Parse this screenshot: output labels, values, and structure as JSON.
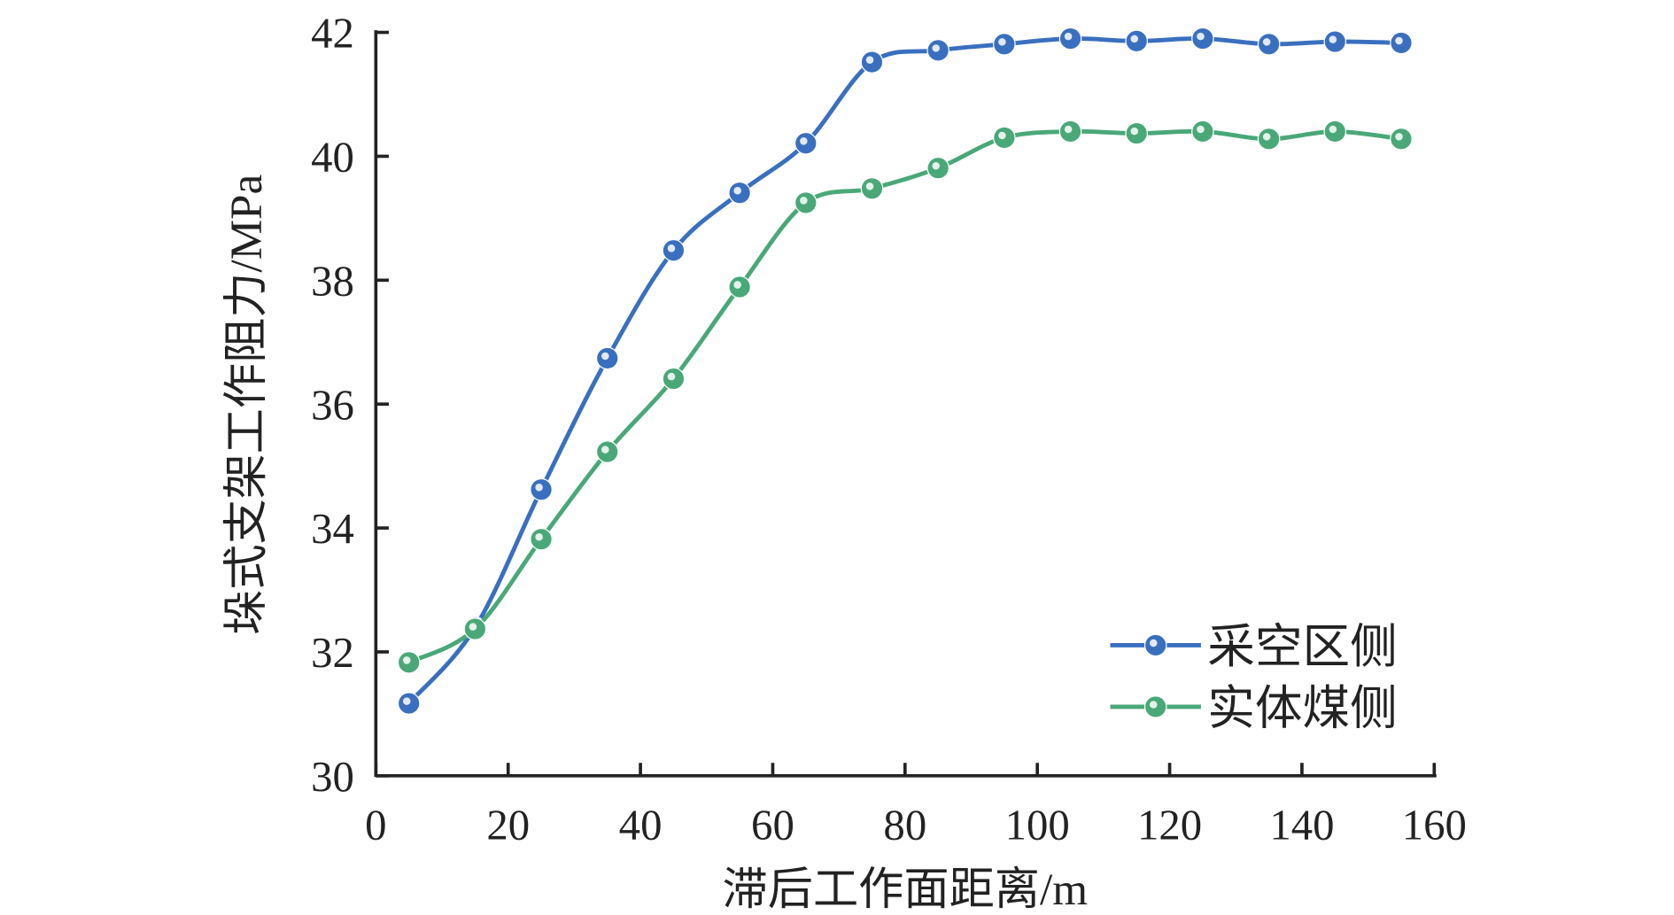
{
  "chart_data": {
    "type": "line",
    "title": "",
    "xlabel": "滞后工作面距离/m",
    "ylabel": "垛式支架工作阻力/MPa",
    "xlim": [
      0,
      160
    ],
    "ylim": [
      30,
      42
    ],
    "xticks": [
      0,
      20,
      40,
      60,
      80,
      100,
      120,
      140,
      160
    ],
    "yticks": [
      30,
      32,
      34,
      36,
      38,
      40,
      42
    ],
    "grid": false,
    "legend_position": "bottom-right",
    "x": [
      5,
      15,
      25,
      35,
      45,
      55,
      65,
      75,
      85,
      95,
      105,
      115,
      125,
      135,
      145,
      155
    ],
    "series": [
      {
        "name": "采空区侧",
        "color": "#3a6fbf",
        "values": [
          31.17,
          32.39,
          34.62,
          36.74,
          38.48,
          39.41,
          40.21,
          41.52,
          41.71,
          41.81,
          41.9,
          41.86,
          41.9,
          41.81,
          41.85,
          41.83
        ]
      },
      {
        "name": "实体煤侧",
        "color": "#4aa878",
        "values": [
          31.83,
          32.37,
          33.82,
          35.23,
          36.41,
          37.89,
          39.25,
          39.48,
          39.81,
          40.3,
          40.4,
          40.37,
          40.4,
          40.28,
          40.4,
          40.28
        ]
      }
    ]
  }
}
